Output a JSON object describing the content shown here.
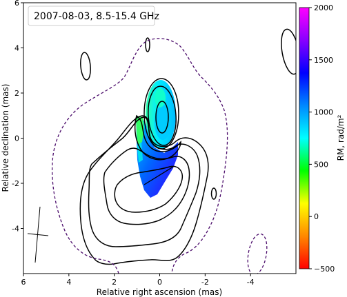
{
  "chart_data": {
    "type": "heatmap",
    "title": "2007-08-03, 8.5-15.4 GHz",
    "xlabel": "Relative right ascension (mas)",
    "ylabel": "Relative declination (mas)",
    "xlim": [
      6,
      -6
    ],
    "ylim": [
      -6,
      6
    ],
    "x_ticks": [
      6,
      4,
      2,
      0,
      -2,
      -4
    ],
    "y_ticks": [
      6,
      4,
      2,
      0,
      -2,
      -4
    ],
    "x_tick_labels": [
      "6",
      "4",
      "2",
      "0",
      "-2",
      "-4"
    ],
    "y_tick_labels": [
      "6",
      "4",
      "2",
      "0",
      "-2",
      "-4"
    ],
    "colorbar": {
      "label": "RM, rad/m²",
      "range": [
        -500,
        2000
      ],
      "ticks": [
        -500,
        0,
        500,
        1000,
        1500,
        2000
      ],
      "tick_labels": [
        "−500",
        "0",
        "500",
        "1000",
        "1500",
        "2000"
      ],
      "colors": [
        "#ff0000",
        "#ff8800",
        "#ffff00",
        "#00ff00",
        "#00ffff",
        "#0088ff",
        "#0000ff",
        "#8800ff",
        "#ff00ff"
      ]
    },
    "legend_placement": "top-left",
    "grid": false
  }
}
